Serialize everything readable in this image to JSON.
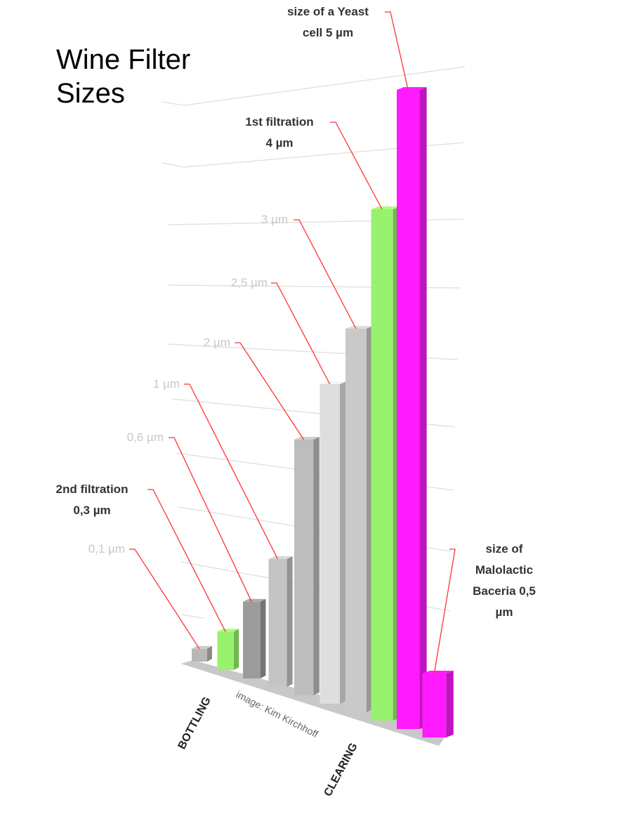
{
  "chart_data": {
    "type": "bar3d",
    "title": "Wine Filter\nSizes",
    "categories": [
      "0,1 µm",
      "2nd filtration\n0,3 µm",
      "0,6 µm",
      "1 µm",
      "2 µm",
      "2,5 µm",
      "3 µm",
      "1st filtration\n4 µm",
      "size of a Yeast\ncell 5 µm",
      "size of\nMalolactic\nBaceria   0,5\nµm"
    ],
    "values": [
      0.1,
      0.3,
      0.6,
      1,
      2,
      2.5,
      3,
      4,
      5,
      0.5
    ],
    "colors": [
      "#b8b8b8",
      "#99f26e",
      "#9c9c9c",
      "#c4c4c4",
      "#bdbdbd",
      "#dedede",
      "#c9c9c9",
      "#99f26e",
      "#ff1aff",
      "#ff1aff"
    ],
    "axis_labels": [
      "BOTTLING",
      "CLEARING"
    ],
    "credit": "image: Kim Kirchhoff"
  }
}
